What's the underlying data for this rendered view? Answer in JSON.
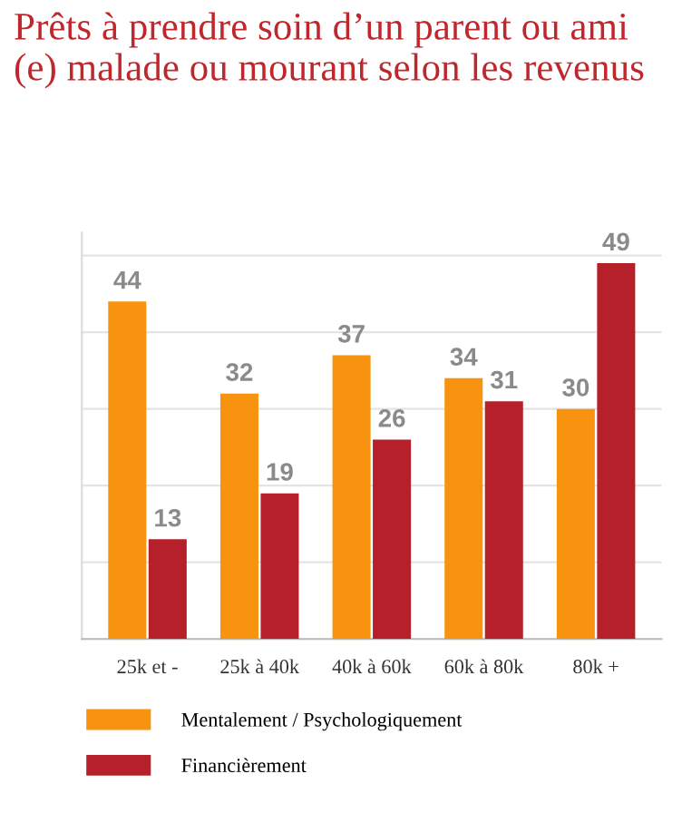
{
  "chart_data": {
    "type": "bar",
    "title": "Prêts à prendre soin d’un parent ou ami (e) malade ou mourant selon les revenus",
    "categories": [
      "25k et -",
      "25k à 40k",
      "40k à 60k",
      "60k à 80k",
      "80k +"
    ],
    "series": [
      {
        "name": "Mentalement / Psychologiquement",
        "color": "#f7930f",
        "values": [
          44,
          32,
          37,
          34,
          30
        ]
      },
      {
        "name": "Financièrement",
        "color": "#b5202a",
        "values": [
          13,
          19,
          26,
          31,
          49
        ]
      }
    ],
    "ylim": [
      0,
      53
    ],
    "yticks": [
      {
        "value": 0,
        "label": null
      },
      {
        "value": 10,
        "label": null
      },
      {
        "value": 20,
        "label": null
      },
      {
        "value": 30,
        "label": null
      },
      {
        "value": 40,
        "label": null
      },
      {
        "value": 50,
        "label": null
      }
    ],
    "grid": "y",
    "data_labels": true,
    "legend": "bottom left"
  }
}
